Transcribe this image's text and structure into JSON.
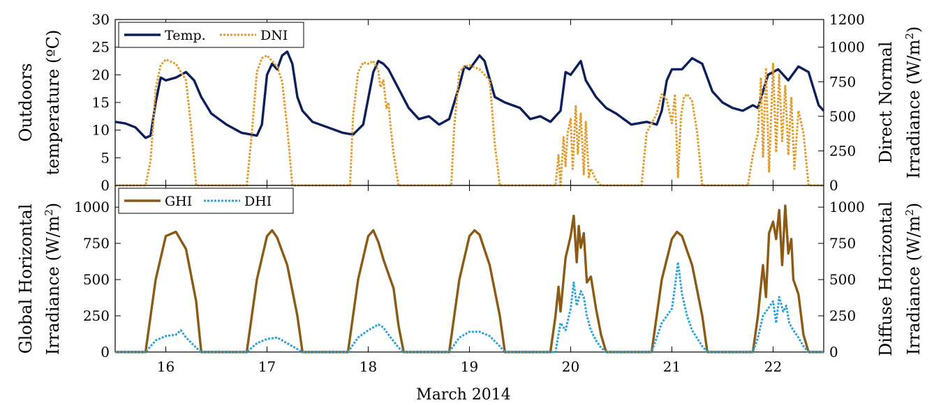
{
  "chart_data": [
    {
      "type": "line",
      "panel": "top",
      "xlabel": "",
      "xlim": [
        15.5,
        22.5
      ],
      "grid": false,
      "legend": {
        "placement": "top-left",
        "entries": [
          "Temp.",
          "DNI"
        ]
      },
      "ylabel_left_lines": [
        "Outdoors",
        "temperature (ºC)"
      ],
      "ylabel_right_line1": "Direct Normal",
      "ylabel_right_line2": "Irradiance (W/m",
      "ylabel_right_sup": "2",
      "ylabel_right_close": ")",
      "ylim_left": [
        0,
        30
      ],
      "ylim_right": [
        0,
        1200
      ],
      "yticks_left": [
        "0",
        "5",
        "10",
        "15",
        "20",
        "25",
        "30"
      ],
      "yticks_right": [
        "0",
        "250",
        "500",
        "750",
        "1000",
        "1200"
      ],
      "series": [
        {
          "name": "Temp.",
          "axis": "left",
          "color": "#0c1f5c",
          "style": "solid",
          "x": [
            15.5,
            15.6,
            15.7,
            15.8,
            15.85,
            15.9,
            15.95,
            16.0,
            16.1,
            16.2,
            16.28,
            16.35,
            16.45,
            16.6,
            16.75,
            16.9,
            16.95,
            17.0,
            17.05,
            17.1,
            17.15,
            17.2,
            17.25,
            17.3,
            17.35,
            17.45,
            17.6,
            17.75,
            17.85,
            17.95,
            18.05,
            18.1,
            18.15,
            18.2,
            18.3,
            18.4,
            18.5,
            18.6,
            18.7,
            18.8,
            18.9,
            18.95,
            19.0,
            19.1,
            19.15,
            19.25,
            19.35,
            19.5,
            19.6,
            19.7,
            19.8,
            19.9,
            19.95,
            20.0,
            20.1,
            20.15,
            20.25,
            20.35,
            20.45,
            20.6,
            20.75,
            20.85,
            20.9,
            20.95,
            21.0,
            21.1,
            21.2,
            21.3,
            21.4,
            21.5,
            21.6,
            21.7,
            21.8,
            21.85,
            21.95,
            22.05,
            22.15,
            22.25,
            22.35,
            22.45,
            22.5
          ],
          "y": [
            11.5,
            11.2,
            10.5,
            8.6,
            9.0,
            15.0,
            19.5,
            19.0,
            19.5,
            20.5,
            19.0,
            16.0,
            13.0,
            11.0,
            9.5,
            9.0,
            11.0,
            20.0,
            22.0,
            21.0,
            23.5,
            24.2,
            22.0,
            16.0,
            13.5,
            11.5,
            10.5,
            9.5,
            9.2,
            11.0,
            20.5,
            22.5,
            22.0,
            21.0,
            17.5,
            14.0,
            12.0,
            12.5,
            11.0,
            12.0,
            18.0,
            21.5,
            21.0,
            23.5,
            22.5,
            16.0,
            15.0,
            14.0,
            12.0,
            12.5,
            11.5,
            13.5,
            20.5,
            20.0,
            22.5,
            19.0,
            16.0,
            14.0,
            13.0,
            11.0,
            11.5,
            11.0,
            13.5,
            19.0,
            21.0,
            21.0,
            23.0,
            22.0,
            17.0,
            15.0,
            14.0,
            13.5,
            14.5,
            14.0,
            20.0,
            21.0,
            19.0,
            21.5,
            20.5,
            14.5,
            13.5
          ]
        },
        {
          "name": "DNI",
          "axis": "right",
          "color": "#e39c2b",
          "style": "dotted",
          "x": [
            15.5,
            15.8,
            15.85,
            15.9,
            15.95,
            16.0,
            16.1,
            16.2,
            16.25,
            16.3,
            16.35,
            16.5,
            16.8,
            16.85,
            16.9,
            16.95,
            17.0,
            17.05,
            17.1,
            17.15,
            17.2,
            17.25,
            17.3,
            17.35,
            17.5,
            17.82,
            17.85,
            17.9,
            17.95,
            18.0,
            18.05,
            18.1,
            18.12,
            18.15,
            18.18,
            18.2,
            18.22,
            18.25,
            18.3,
            18.35,
            18.5,
            18.82,
            18.85,
            18.9,
            18.95,
            19.0,
            19.1,
            19.2,
            19.25,
            19.3,
            19.5,
            19.85,
            19.88,
            19.9,
            19.93,
            19.95,
            19.97,
            20.0,
            20.02,
            20.05,
            20.07,
            20.1,
            20.13,
            20.15,
            20.18,
            20.2,
            20.25,
            20.3,
            20.35,
            20.7,
            20.75,
            20.85,
            20.9,
            20.95,
            21.0,
            21.03,
            21.06,
            21.09,
            21.12,
            21.15,
            21.2,
            21.25,
            21.3,
            21.35,
            21.75,
            21.8,
            21.85,
            21.88,
            21.9,
            21.93,
            21.96,
            22.0,
            22.03,
            22.06,
            22.09,
            22.12,
            22.15,
            22.18,
            22.21,
            22.25,
            22.3,
            22.35,
            22.5
          ],
          "y": [
            0,
            0,
            180,
            700,
            870,
            910,
            880,
            760,
            420,
            0,
            0,
            0,
            0,
            380,
            820,
            920,
            940,
            900,
            860,
            750,
            420,
            0,
            0,
            0,
            0,
            0,
            500,
            820,
            890,
            880,
            900,
            830,
            710,
            760,
            560,
            600,
            430,
            230,
            0,
            0,
            0,
            0,
            430,
            820,
            860,
            870,
            840,
            760,
            300,
            0,
            0,
            0,
            220,
            0,
            350,
            140,
            380,
            480,
            120,
            580,
            230,
            520,
            80,
            460,
            60,
            120,
            40,
            0,
            0,
            0,
            380,
            520,
            660,
            620,
            450,
            660,
            60,
            500,
            640,
            660,
            610,
            380,
            0,
            0,
            0,
            220,
            380,
            780,
            200,
            850,
            100,
            880,
            240,
            800,
            320,
            720,
            220,
            640,
            120,
            540,
            380,
            0,
            0
          ]
        }
      ]
    },
    {
      "type": "line",
      "panel": "bottom",
      "xlabel": "March 2014",
      "xlim": [
        15.5,
        22.5
      ],
      "xticks": [
        "16",
        "17",
        "18",
        "19",
        "20",
        "21",
        "22"
      ],
      "grid": false,
      "legend": {
        "placement": "top-left",
        "entries": [
          "GHI",
          "DHI"
        ]
      },
      "ylabel_left_line1": "Global Horizontal",
      "ylabel_left_line2": "Irradiance (W/m",
      "ylabel_left_sup": "2",
      "ylabel_left_close": ")",
      "ylabel_right_line1": "Diffuse Horizontal",
      "ylabel_right_line2": "Irradiance (W/m",
      "ylabel_right_sup": "2",
      "ylabel_right_close": ")",
      "ylim_left": [
        0,
        1150
      ],
      "ylim_right": [
        0,
        1150
      ],
      "yticks_left": [
        "0",
        "250",
        "500",
        "750",
        "1000"
      ],
      "yticks_right": [
        "0",
        "250",
        "500",
        "750",
        "1000"
      ],
      "series": [
        {
          "name": "GHI",
          "axis": "left",
          "color": "#8b5a14",
          "style": "solid",
          "x": [
            15.5,
            15.8,
            15.9,
            16.0,
            16.1,
            16.2,
            16.3,
            16.35,
            16.8,
            16.9,
            17.0,
            17.05,
            17.1,
            17.2,
            17.3,
            17.35,
            17.8,
            17.9,
            18.0,
            18.05,
            18.1,
            18.15,
            18.2,
            18.25,
            18.3,
            18.35,
            18.8,
            18.9,
            19.0,
            19.05,
            19.1,
            19.2,
            19.3,
            19.35,
            19.8,
            19.85,
            19.88,
            19.9,
            19.95,
            20.0,
            20.03,
            20.06,
            20.08,
            20.1,
            20.13,
            20.16,
            20.2,
            20.25,
            20.3,
            20.35,
            20.8,
            20.9,
            21.0,
            21.05,
            21.1,
            21.2,
            21.3,
            21.35,
            21.8,
            21.85,
            21.9,
            21.93,
            21.96,
            22.0,
            22.03,
            22.06,
            22.09,
            22.12,
            22.15,
            22.18,
            22.2,
            22.25,
            22.3,
            22.35,
            22.5
          ],
          "y": [
            0,
            0,
            500,
            800,
            830,
            710,
            350,
            0,
            0,
            500,
            800,
            840,
            790,
            600,
            250,
            0,
            0,
            500,
            800,
            840,
            760,
            640,
            540,
            440,
            180,
            0,
            0,
            500,
            800,
            840,
            810,
            600,
            250,
            0,
            0,
            250,
            450,
            280,
            650,
            800,
            940,
            620,
            870,
            720,
            820,
            480,
            520,
            300,
            120,
            0,
            0,
            500,
            780,
            830,
            800,
            600,
            250,
            0,
            0,
            250,
            600,
            380,
            820,
            900,
            780,
            980,
            600,
            1010,
            680,
            780,
            500,
            400,
            120,
            0,
            0
          ]
        },
        {
          "name": "DHI",
          "axis": "right",
          "color": "#29a3e0",
          "style": "dotted",
          "x": [
            15.5,
            15.8,
            15.9,
            16.0,
            16.1,
            16.15,
            16.2,
            16.3,
            16.35,
            16.8,
            16.9,
            17.0,
            17.1,
            17.2,
            17.3,
            17.35,
            17.8,
            17.9,
            18.0,
            18.1,
            18.15,
            18.2,
            18.3,
            18.35,
            18.8,
            18.9,
            19.0,
            19.1,
            19.2,
            19.3,
            19.35,
            19.85,
            19.9,
            19.95,
            20.0,
            20.03,
            20.06,
            20.1,
            20.13,
            20.16,
            20.2,
            20.25,
            20.3,
            20.35,
            20.8,
            20.9,
            21.0,
            21.03,
            21.06,
            21.1,
            21.15,
            21.2,
            21.3,
            21.35,
            21.8,
            21.85,
            21.9,
            21.95,
            22.0,
            22.03,
            22.06,
            22.1,
            22.13,
            22.16,
            22.2,
            22.25,
            22.3,
            22.35,
            22.5
          ],
          "y": [
            0,
            0,
            80,
            110,
            120,
            150,
            100,
            30,
            0,
            0,
            60,
            90,
            100,
            60,
            20,
            0,
            0,
            100,
            150,
            190,
            170,
            120,
            30,
            0,
            0,
            100,
            140,
            140,
            110,
            40,
            0,
            0,
            200,
            150,
            300,
            480,
            320,
            420,
            380,
            250,
            150,
            80,
            30,
            0,
            0,
            200,
            300,
            450,
            620,
            400,
            250,
            150,
            40,
            0,
            0,
            100,
            250,
            300,
            350,
            200,
            380,
            280,
            320,
            200,
            150,
            100,
            40,
            0,
            0
          ]
        }
      ]
    }
  ]
}
